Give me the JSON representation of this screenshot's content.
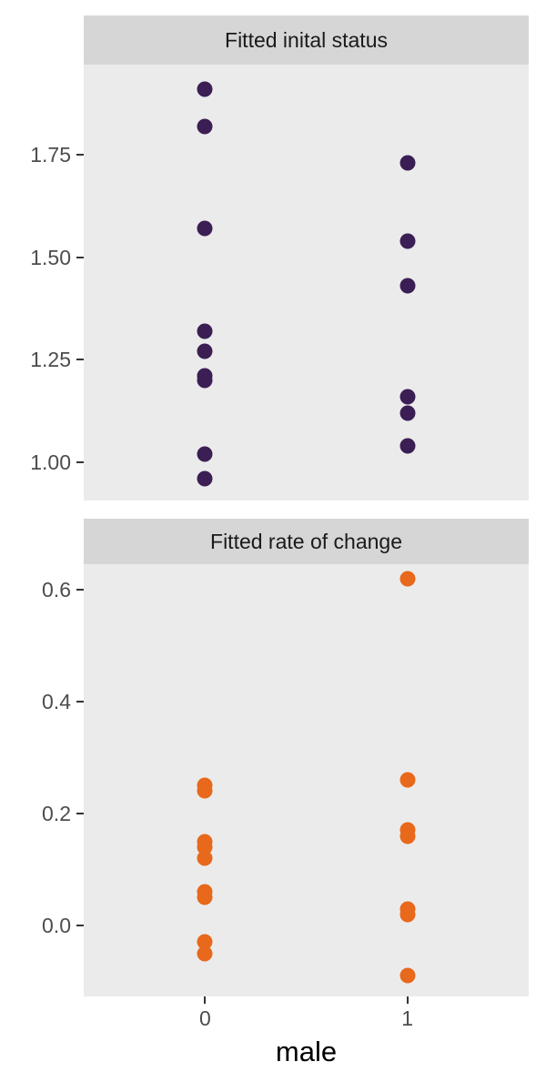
{
  "chart_data": {
    "type": "scatter",
    "xlabel": "male",
    "x_categories": [
      "0",
      "1"
    ],
    "grid": false,
    "legend": "none",
    "facets": [
      {
        "title": "Fitted inital status",
        "color": "#3b1f54",
        "ylim": [
          0.907,
          1.97
        ],
        "yticks": [
          1.0,
          1.25,
          1.5,
          1.75
        ],
        "ytick_labels": [
          "1.00",
          "1.25",
          "1.50",
          "1.75"
        ],
        "points": [
          {
            "x": "0",
            "y": 1.91
          },
          {
            "x": "0",
            "y": 1.82
          },
          {
            "x": "0",
            "y": 1.57
          },
          {
            "x": "0",
            "y": 1.32
          },
          {
            "x": "0",
            "y": 1.27
          },
          {
            "x": "0",
            "y": 1.21
          },
          {
            "x": "0",
            "y": 1.2
          },
          {
            "x": "0",
            "y": 1.02
          },
          {
            "x": "0",
            "y": 0.96
          },
          {
            "x": "1",
            "y": 1.73
          },
          {
            "x": "1",
            "y": 1.54
          },
          {
            "x": "1",
            "y": 1.43
          },
          {
            "x": "1",
            "y": 1.16
          },
          {
            "x": "1",
            "y": 1.12
          },
          {
            "x": "1",
            "y": 1.04
          }
        ]
      },
      {
        "title": "Fitted rate of change",
        "color": "#e8681c",
        "ylim": [
          -0.127,
          0.646
        ],
        "yticks": [
          0.0,
          0.2,
          0.4,
          0.6
        ],
        "ytick_labels": [
          "0.0",
          "0.2",
          "0.4",
          "0.6"
        ],
        "points": [
          {
            "x": "0",
            "y": 0.25
          },
          {
            "x": "0",
            "y": 0.24
          },
          {
            "x": "0",
            "y": 0.15
          },
          {
            "x": "0",
            "y": 0.14
          },
          {
            "x": "0",
            "y": 0.12
          },
          {
            "x": "0",
            "y": 0.06
          },
          {
            "x": "0",
            "y": 0.05
          },
          {
            "x": "0",
            "y": -0.03
          },
          {
            "x": "0",
            "y": -0.05
          },
          {
            "x": "1",
            "y": 0.62
          },
          {
            "x": "1",
            "y": 0.26
          },
          {
            "x": "1",
            "y": 0.17
          },
          {
            "x": "1",
            "y": 0.16
          },
          {
            "x": "1",
            "y": 0.03
          },
          {
            "x": "1",
            "y": 0.02
          },
          {
            "x": "1",
            "y": -0.09
          }
        ]
      }
    ]
  }
}
